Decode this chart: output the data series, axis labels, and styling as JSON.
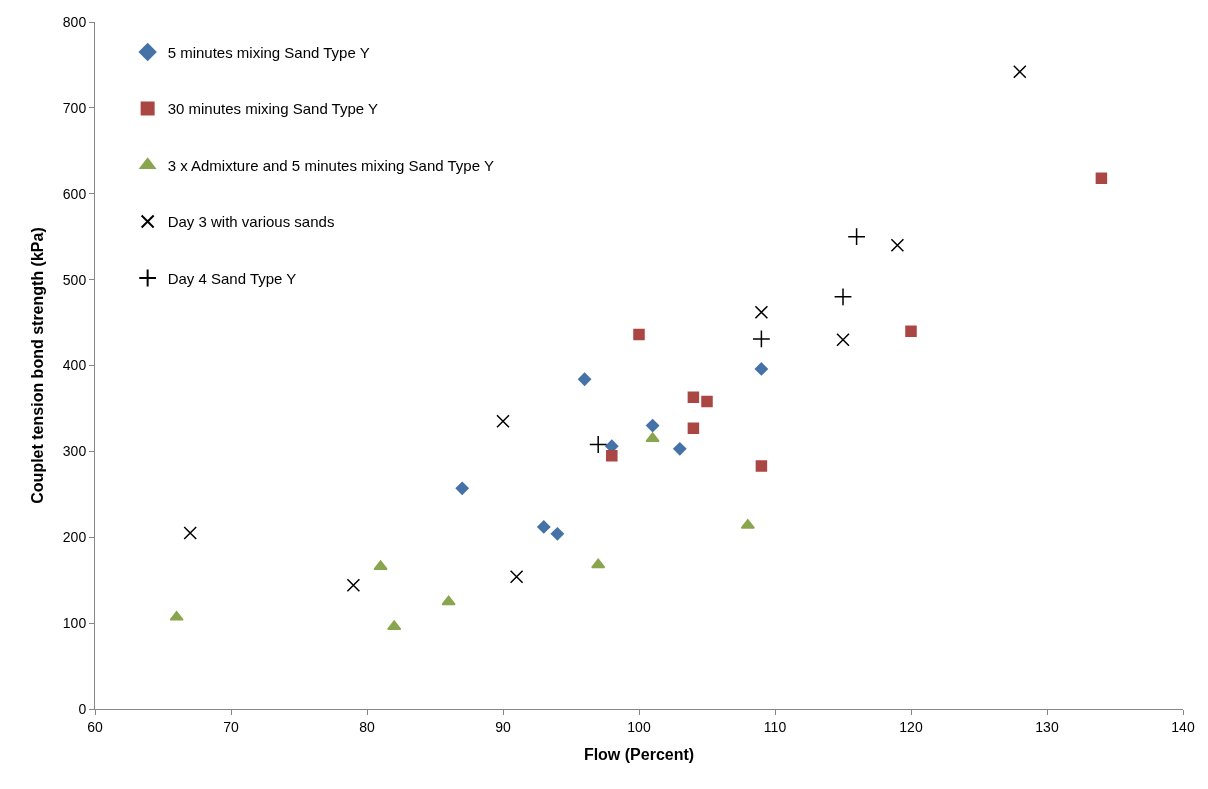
{
  "chart_data": {
    "type": "scatter",
    "xlabel": "Flow (Percent)",
    "ylabel": "Couplet tension bond strength (kPa)",
    "xlim": [
      60,
      140
    ],
    "xticks": [
      60,
      70,
      80,
      90,
      100,
      110,
      120,
      130,
      140
    ],
    "ylim": [
      0,
      800
    ],
    "yticks": [
      0,
      100,
      200,
      300,
      400,
      500,
      600,
      700,
      800
    ],
    "legend": "top left",
    "series": [
      {
        "name": "5 minutes mixing Sand Type Y",
        "color": "#4572a7",
        "marker": "diamond",
        "x": [
          87,
          93,
          94,
          96,
          98,
          101,
          103,
          109
        ],
        "values": [
          257,
          212,
          204,
          384,
          306,
          330,
          303,
          396
        ]
      },
      {
        "name": "30 minutes mixing Sand Type Y",
        "color": "#aa4643",
        "marker": "square",
        "x": [
          98,
          100,
          104,
          104,
          105,
          109,
          120,
          134
        ],
        "values": [
          295,
          436,
          363,
          327,
          358,
          283,
          440,
          618
        ]
      },
      {
        "name": "3 x Admixture and 5 minutes mixing Sand Type Y",
        "color": "#89a54e",
        "marker": "triangle",
        "x": [
          66,
          81,
          82,
          86,
          97,
          101,
          108
        ],
        "values": [
          107,
          166,
          96,
          125,
          168,
          315,
          214
        ]
      },
      {
        "name": "Day 3 with various sands",
        "color": "#000000",
        "marker": "cross",
        "x": [
          67,
          79,
          90,
          91,
          109,
          115,
          119,
          128
        ],
        "values": [
          205,
          144,
          335,
          154,
          462,
          430,
          540,
          742
        ]
      },
      {
        "name": "Day 4 Sand Type Y",
        "color": "#000000",
        "marker": "plus",
        "x": [
          97,
          109,
          115,
          116
        ],
        "values": [
          308,
          431,
          480,
          550
        ]
      }
    ]
  }
}
